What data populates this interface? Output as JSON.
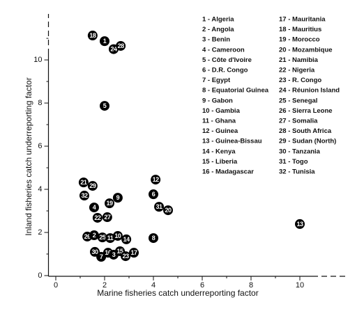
{
  "chart_data": {
    "type": "scatter",
    "x_label": "Marine fisheries catch underreporting factor",
    "y_label": "Inland fisheries catch underreporting factor",
    "xlim": [
      -0.3,
      12
    ],
    "ylim": [
      0,
      12.1
    ],
    "xticks": [
      0,
      2,
      4,
      6,
      8,
      10
    ],
    "yticks": [
      0,
      2,
      4,
      6,
      8,
      10
    ],
    "xminorticks": [
      1,
      3,
      5,
      7,
      9
    ],
    "yminorticks": [
      1,
      3,
      5,
      7,
      9,
      11
    ],
    "color": "#000000",
    "labels": [
      18,
      1,
      24,
      28,
      5,
      12,
      21,
      29,
      6,
      32,
      9,
      19,
      4,
      31,
      20,
      22,
      27,
      13,
      26,
      2,
      25,
      11,
      10,
      14,
      8,
      30,
      7,
      16,
      3,
      15,
      23,
      17
    ],
    "x": [
      1.51,
      2.0,
      2.37,
      2.66,
      2.0,
      4.09,
      1.14,
      1.51,
      4.0,
      1.17,
      2.54,
      2.2,
      1.57,
      4.23,
      4.6,
      1.71,
      2.11,
      10.0,
      1.29,
      1.57,
      1.91,
      2.23,
      2.54,
      2.89,
      4.0,
      1.6,
      1.86,
      2.14,
      2.37,
      2.63,
      2.86,
      3.2
    ],
    "y": [
      11.13,
      10.87,
      10.5,
      10.65,
      7.87,
      4.45,
      4.32,
      4.16,
      3.77,
      3.71,
      3.61,
      3.35,
      3.16,
      3.19,
      3.03,
      2.68,
      2.71,
      2.39,
      1.81,
      1.87,
      1.77,
      1.74,
      1.84,
      1.68,
      1.74,
      1.1,
      0.87,
      1.06,
      0.97,
      1.13,
      0.9,
      1.06
    ],
    "legend": [
      "1 - Algeria",
      "2 - Angola",
      "3 - Benin",
      "4 - Cameroon",
      "5 - Côte d'Ivoire",
      "6 - D.R. Congo",
      "7 - Egypt",
      "8 - Equatorial Guinea",
      "9 - Gabon",
      "10 - Gambia",
      "11 - Ghana",
      "12 - Guinea",
      "13 - Guinea-Bissau",
      "14 - Kenya",
      "15 - Liberia",
      "16 - Madagascar",
      "17 - Mauritania",
      "18 - Mauritius",
      "19 - Morocco",
      "20 - Mozambique",
      "21 - Namibia",
      "22 - Nigeria",
      "23 - R. Congo",
      "24 - Réunion Island",
      "25 - Senegal",
      "26 - Sierra Leone",
      "27 - Somalia",
      "28 - South Africa",
      "29 - Sudan (North)",
      "30 - Tanzania",
      "31 - Togo",
      "32 - Tunisia"
    ]
  }
}
